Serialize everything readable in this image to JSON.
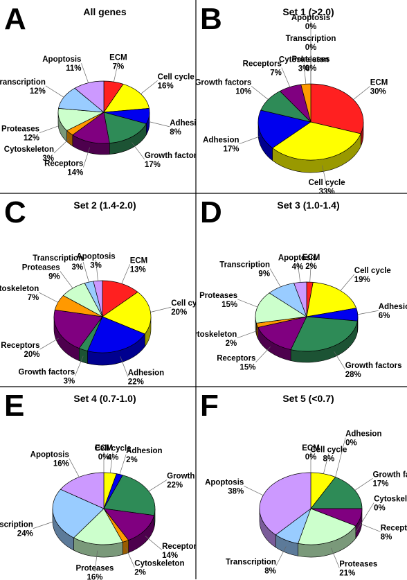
{
  "colors": {
    "ECM": "#ff2020",
    "Cell cycle": "#ffff00",
    "Adhesion": "#0000ee",
    "Growth factors": "#2e8b57",
    "Receptors": "#800080",
    "Cytoskeleton": "#ff9900",
    "Proteases": "#ccffcc",
    "Transcription": "#99ccff",
    "Apoptosis": "#cc99ff"
  },
  "chart_data": [
    {
      "panel": "A",
      "title": "All genes",
      "type": "pie",
      "slices": [
        {
          "label": "ECM",
          "value": 7
        },
        {
          "label": "Cell cycle",
          "value": 16
        },
        {
          "label": "Adhesion",
          "value": 8
        },
        {
          "label": "Growth factors",
          "value": 17
        },
        {
          "label": "Receptors",
          "value": 14
        },
        {
          "label": "Cytoskeleton",
          "value": 3
        },
        {
          "label": "Proteases",
          "value": 12
        },
        {
          "label": "Transcription",
          "value": 12
        },
        {
          "label": "Apoptosis",
          "value": 11
        }
      ]
    },
    {
      "panel": "B",
      "title": "Set 1 (>2.0)",
      "type": "pie",
      "slices": [
        {
          "label": "ECM",
          "value": 30
        },
        {
          "label": "Cell cycle",
          "value": 33
        },
        {
          "label": "Adhesion",
          "value": 17
        },
        {
          "label": "Growth factors",
          "value": 10
        },
        {
          "label": "Receptors",
          "value": 7
        },
        {
          "label": "Cytoskeleton",
          "value": 3
        },
        {
          "label": "Proteases",
          "value": 0
        },
        {
          "label": "Transcription",
          "value": 0
        },
        {
          "label": "Apoptosis",
          "value": 0
        }
      ]
    },
    {
      "panel": "C",
      "title": "Set 2 (1.4-2.0)",
      "type": "pie",
      "slices": [
        {
          "label": "ECM",
          "value": 13
        },
        {
          "label": "Cell cycle",
          "value": 20
        },
        {
          "label": "Adhesion",
          "value": 22
        },
        {
          "label": "Growth factors",
          "value": 3
        },
        {
          "label": "Receptors",
          "value": 20
        },
        {
          "label": "Cytoskeleton",
          "value": 7
        },
        {
          "label": "Proteases",
          "value": 9
        },
        {
          "label": "Transcription",
          "value": 3
        },
        {
          "label": "Apoptosis",
          "value": 3
        }
      ]
    },
    {
      "panel": "D",
      "title": "Set 3 (1.0-1.4)",
      "type": "pie",
      "slices": [
        {
          "label": "ECM",
          "value": 2
        },
        {
          "label": "Cell cycle",
          "value": 19
        },
        {
          "label": "Adhesion",
          "value": 6
        },
        {
          "label": "Growth factors",
          "value": 28
        },
        {
          "label": "Receptors",
          "value": 15
        },
        {
          "label": "Cytoskeleton",
          "value": 2
        },
        {
          "label": "Proteases",
          "value": 15
        },
        {
          "label": "Transcription",
          "value": 9
        },
        {
          "label": "Apoptosis",
          "value": 4
        }
      ]
    },
    {
      "panel": "E",
      "title": "Set 4 (0.7-1.0)",
      "type": "pie",
      "slices": [
        {
          "label": "ECM",
          "value": 0
        },
        {
          "label": "Cell cycle",
          "value": 4
        },
        {
          "label": "Adhesion",
          "value": 2
        },
        {
          "label": "Growth factors",
          "value": 22
        },
        {
          "label": "Receptors",
          "value": 14
        },
        {
          "label": "Cytoskeleton",
          "value": 2
        },
        {
          "label": "Proteases",
          "value": 16
        },
        {
          "label": "Transcription",
          "value": 24
        },
        {
          "label": "Apoptosis",
          "value": 16
        }
      ]
    },
    {
      "panel": "F",
      "title": "Set 5 (<0.7)",
      "type": "pie",
      "slices": [
        {
          "label": "ECM",
          "value": 0
        },
        {
          "label": "Cell cycle",
          "value": 8
        },
        {
          "label": "Adhesion",
          "value": 0
        },
        {
          "label": "Growth factors",
          "value": 17
        },
        {
          "label": "Receptors",
          "value": 8
        },
        {
          "label": "Cytoskeleton",
          "value": 0
        },
        {
          "label": "Proteases",
          "value": 21
        },
        {
          "label": "Transcription",
          "value": 8
        },
        {
          "label": "Apoptosis",
          "value": 38
        }
      ]
    }
  ]
}
